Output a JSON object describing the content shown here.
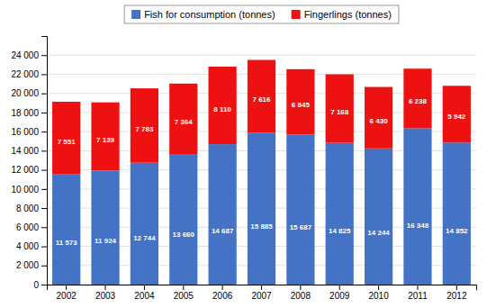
{
  "chart_data": {
    "type": "bar",
    "stacked": true,
    "categories": [
      "2002",
      "2003",
      "2004",
      "2005",
      "2006",
      "2007",
      "2008",
      "2009",
      "2010",
      "2011",
      "2012"
    ],
    "series": [
      {
        "name": "Fish for consumption (tonnes)",
        "color": "#4472C4",
        "values": [
          11573,
          11924,
          12744,
          13660,
          14687,
          15885,
          15687,
          14825,
          14244,
          16348,
          14852
        ],
        "value_labels": [
          "11 573",
          "11 924",
          "12 744",
          "13 660",
          "14 687",
          "15 885",
          "15 687",
          "14 825",
          "14 244",
          "16 348",
          "14 852"
        ]
      },
      {
        "name": "Fingerlings (tonnes)",
        "color": "#EE1111",
        "values": [
          7551,
          7139,
          7783,
          7364,
          8110,
          7616,
          6845,
          7168,
          6430,
          6238,
          5942
        ],
        "value_labels": [
          "7 551",
          "7 139",
          "7 783",
          "7 364",
          "8 110",
          "7 616",
          "6 845",
          "7 168",
          "6 430",
          "6 238",
          "5 942"
        ]
      }
    ],
    "ylim": [
      0,
      26000
    ],
    "yticks": [
      0,
      {
        "value": 2000,
        "label": "2 000"
      },
      {
        "value": 4000,
        "label": "4 000"
      },
      {
        "value": 6000,
        "label": "6 000"
      },
      {
        "value": 8000,
        "label": "8 000"
      },
      {
        "value": 10000,
        "label": "10 000"
      },
      {
        "value": 12000,
        "label": "12 000"
      },
      {
        "value": 14000,
        "label": "14 000"
      },
      {
        "value": 16000,
        "label": "16 000"
      },
      {
        "value": 18000,
        "label": "18 000"
      },
      {
        "value": 20000,
        "label": "20 000"
      },
      {
        "value": 22000,
        "label": "22 000"
      },
      {
        "value": 24000,
        "label": "24 000"
      }
    ],
    "grid": true,
    "data_labels": true,
    "legend": "top"
  }
}
